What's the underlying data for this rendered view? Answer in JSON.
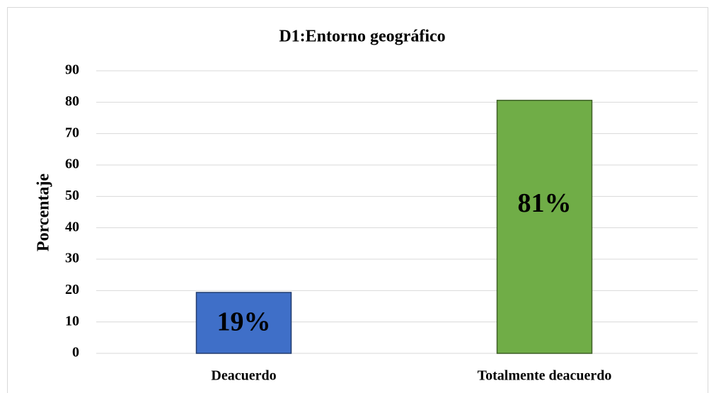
{
  "chart_data": {
    "type": "bar",
    "title": "D1:Entorno geográfico",
    "ylabel": "Porcentaje",
    "categories": [
      "Deacuerdo",
      "Totalmente deacuerdo"
    ],
    "values": [
      19.4,
      80.6
    ],
    "value_labels": [
      "19%",
      "81%"
    ],
    "colors": [
      "#3f6fc8",
      "#70ad47"
    ],
    "ylim": [
      0,
      90
    ],
    "yticks": [
      0,
      10,
      20,
      30,
      40,
      50,
      60,
      70,
      80,
      90
    ],
    "grid": true
  }
}
